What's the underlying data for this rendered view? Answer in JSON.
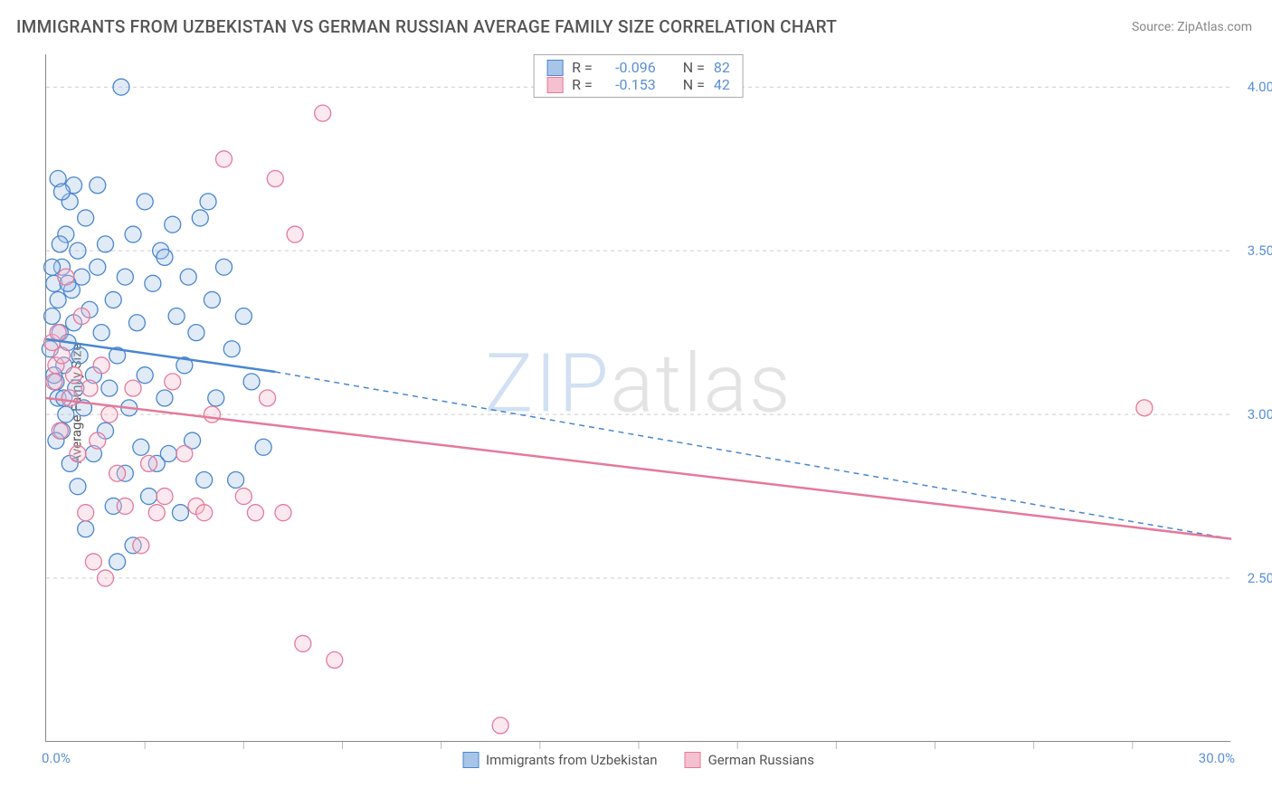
{
  "title": "IMMIGRANTS FROM UZBEKISTAN VS GERMAN RUSSIAN AVERAGE FAMILY SIZE CORRELATION CHART",
  "source": "Source: ZipAtlas.com",
  "watermark_a": "ZIP",
  "watermark_b": "atlas",
  "y_axis_label": "Average Family Size",
  "x_min_label": "0.0%",
  "x_max_label": "30.0%",
  "chart": {
    "type": "scatter",
    "x_domain": [
      0,
      30
    ],
    "y_domain": [
      2.0,
      4.1
    ],
    "y_ticks": [
      2.5,
      3.0,
      3.5,
      4.0
    ],
    "x_ticks_minor": [
      2.5,
      5,
      7.5,
      10,
      12.5,
      15,
      17.5,
      20,
      22.5,
      25,
      27.5
    ],
    "grid_color": "#cccccc",
    "background_color": "#ffffff",
    "axis_color": "#888888",
    "tick_label_color": "#5b8fd6",
    "marker_radius": 9,
    "marker_fill_opacity": 0.35,
    "marker_stroke_width": 1.3,
    "line_width_solid": 2.5,
    "line_width_dash": 1.5,
    "dash_pattern": "6,5"
  },
  "series": [
    {
      "id": "uzbekistan",
      "label": "Immigrants from Uzbekistan",
      "color_stroke": "#4a86d0",
      "color_fill": "#a8c5e8",
      "R": "-0.096",
      "N": "82",
      "trend": {
        "start_x": 0,
        "start_y": 3.23,
        "solid_end_x": 5.8,
        "solid_end_y": 3.13,
        "dash_end_x": 30,
        "dash_end_y": 2.62
      },
      "points": [
        [
          0.1,
          3.2
        ],
        [
          0.15,
          3.3
        ],
        [
          0.2,
          3.4
        ],
        [
          0.25,
          3.1
        ],
        [
          0.3,
          3.35
        ],
        [
          0.3,
          3.05
        ],
        [
          0.35,
          3.25
        ],
        [
          0.4,
          3.45
        ],
        [
          0.4,
          2.95
        ],
        [
          0.45,
          3.15
        ],
        [
          0.5,
          3.55
        ],
        [
          0.5,
          3.0
        ],
        [
          0.55,
          3.22
        ],
        [
          0.6,
          3.65
        ],
        [
          0.6,
          2.85
        ],
        [
          0.65,
          3.38
        ],
        [
          0.7,
          3.7
        ],
        [
          0.7,
          3.28
        ],
        [
          0.75,
          3.08
        ],
        [
          0.8,
          3.5
        ],
        [
          0.8,
          2.78
        ],
        [
          0.85,
          3.18
        ],
        [
          0.9,
          3.42
        ],
        [
          0.95,
          3.02
        ],
        [
          1.0,
          3.6
        ],
        [
          1.0,
          2.65
        ],
        [
          1.1,
          3.32
        ],
        [
          1.2,
          3.12
        ],
        [
          1.2,
          2.88
        ],
        [
          1.3,
          3.45
        ],
        [
          1.3,
          3.7
        ],
        [
          1.4,
          3.25
        ],
        [
          1.5,
          2.95
        ],
        [
          1.5,
          3.52
        ],
        [
          1.6,
          3.08
        ],
        [
          1.7,
          3.35
        ],
        [
          1.7,
          2.72
        ],
        [
          1.8,
          2.55
        ],
        [
          1.8,
          3.18
        ],
        [
          1.9,
          4.0
        ],
        [
          2.0,
          3.42
        ],
        [
          2.0,
          2.82
        ],
        [
          2.1,
          3.02
        ],
        [
          2.2,
          3.55
        ],
        [
          2.2,
          2.6
        ],
        [
          2.3,
          3.28
        ],
        [
          2.4,
          2.9
        ],
        [
          2.5,
          3.65
        ],
        [
          2.5,
          3.12
        ],
        [
          2.6,
          2.75
        ],
        [
          2.7,
          3.4
        ],
        [
          2.8,
          2.85
        ],
        [
          2.9,
          3.5
        ],
        [
          3.0,
          3.48
        ],
        [
          3.0,
          3.05
        ],
        [
          3.1,
          2.88
        ],
        [
          3.2,
          3.58
        ],
        [
          3.3,
          3.3
        ],
        [
          3.4,
          2.7
        ],
        [
          3.5,
          3.15
        ],
        [
          3.6,
          3.42
        ],
        [
          3.7,
          2.92
        ],
        [
          3.8,
          3.25
        ],
        [
          3.9,
          3.6
        ],
        [
          4.0,
          2.8
        ],
        [
          4.1,
          3.65
        ],
        [
          4.2,
          3.35
        ],
        [
          4.3,
          3.05
        ],
        [
          4.5,
          3.45
        ],
        [
          4.7,
          3.2
        ],
        [
          4.8,
          2.8
        ],
        [
          5.0,
          3.3
        ],
        [
          5.2,
          3.1
        ],
        [
          5.5,
          2.9
        ],
        [
          0.3,
          3.72
        ],
        [
          0.4,
          3.68
        ],
        [
          0.2,
          3.12
        ],
        [
          0.25,
          2.92
        ],
        [
          0.15,
          3.45
        ],
        [
          0.35,
          3.52
        ],
        [
          0.45,
          3.05
        ],
        [
          0.55,
          3.4
        ]
      ]
    },
    {
      "id": "german_russians",
      "label": "German Russians",
      "color_stroke": "#e47a9a",
      "color_fill": "#f5c0d0",
      "R": "-0.153",
      "N": "42",
      "trend": {
        "start_x": 0,
        "start_y": 3.05,
        "solid_end_x": 30,
        "solid_end_y": 2.62,
        "dash_end_x": 30,
        "dash_end_y": 2.62
      },
      "points": [
        [
          0.15,
          3.22
        ],
        [
          0.2,
          3.1
        ],
        [
          0.25,
          3.15
        ],
        [
          0.3,
          3.25
        ],
        [
          0.35,
          2.95
        ],
        [
          0.4,
          3.18
        ],
        [
          0.5,
          3.42
        ],
        [
          0.6,
          3.05
        ],
        [
          0.7,
          3.12
        ],
        [
          0.8,
          2.88
        ],
        [
          0.9,
          3.3
        ],
        [
          1.0,
          2.7
        ],
        [
          1.1,
          3.08
        ],
        [
          1.2,
          2.55
        ],
        [
          1.3,
          2.92
        ],
        [
          1.4,
          3.15
        ],
        [
          1.5,
          2.5
        ],
        [
          1.6,
          3.0
        ],
        [
          1.8,
          2.82
        ],
        [
          2.0,
          2.72
        ],
        [
          2.2,
          3.08
        ],
        [
          2.4,
          2.6
        ],
        [
          2.6,
          2.85
        ],
        [
          2.8,
          2.7
        ],
        [
          3.0,
          2.75
        ],
        [
          3.2,
          3.1
        ],
        [
          3.5,
          2.88
        ],
        [
          3.8,
          2.72
        ],
        [
          4.0,
          2.7
        ],
        [
          4.2,
          3.0
        ],
        [
          4.5,
          3.78
        ],
        [
          5.0,
          2.75
        ],
        [
          5.3,
          2.7
        ],
        [
          5.6,
          3.05
        ],
        [
          5.8,
          3.72
        ],
        [
          6.0,
          2.7
        ],
        [
          6.3,
          3.55
        ],
        [
          6.5,
          2.3
        ],
        [
          7.0,
          3.92
        ],
        [
          7.3,
          2.25
        ],
        [
          11.5,
          2.05
        ],
        [
          27.8,
          3.02
        ]
      ]
    }
  ],
  "legend_top": {
    "r_label": "R =",
    "n_label": "N ="
  }
}
